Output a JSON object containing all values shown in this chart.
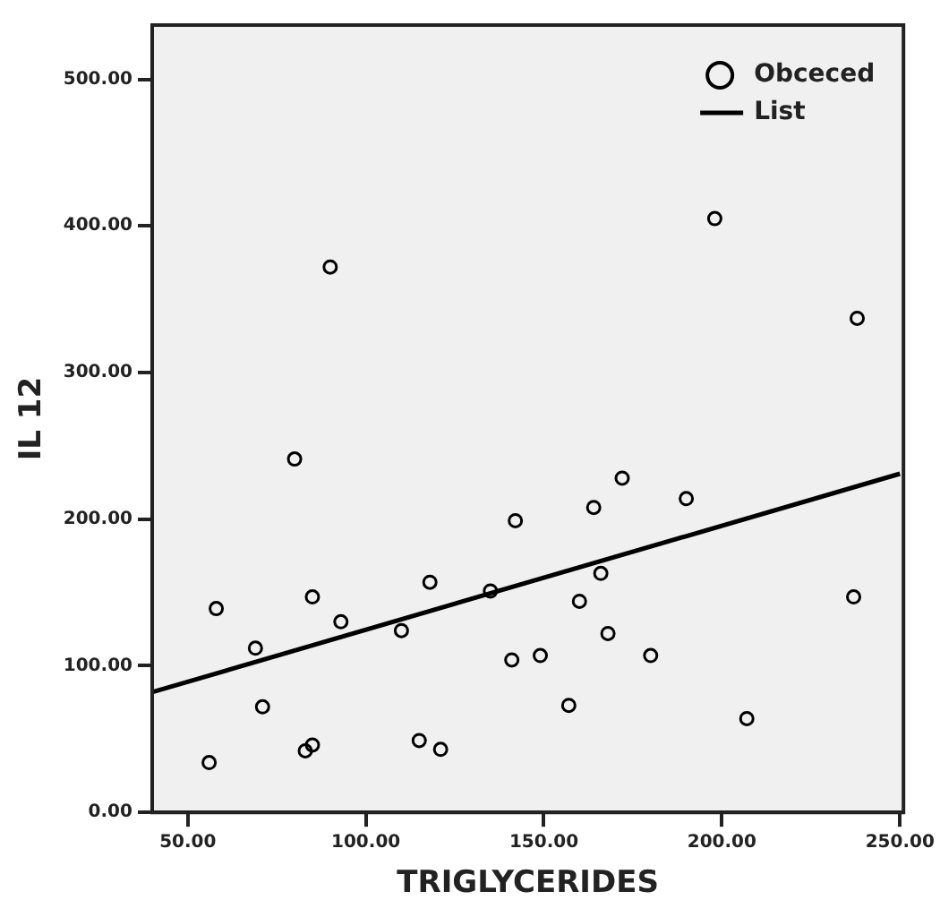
{
  "chart_data": {
    "type": "scatter",
    "xlabel": "TRIGLYCERIDES",
    "ylabel": "IL 12",
    "xlim": [
      40,
      251
    ],
    "xticks": [
      {
        "value": 50,
        "label": "50.00"
      },
      {
        "value": 100,
        "label": "100.00"
      },
      {
        "value": 150,
        "label": "150.00"
      },
      {
        "value": 200,
        "label": "200.00"
      },
      {
        "value": 250,
        "label": "250.00"
      }
    ],
    "ylim": [
      0,
      537
    ],
    "yticks": [
      {
        "value": 0,
        "label": "0.00"
      },
      {
        "value": 100,
        "label": "100.00"
      },
      {
        "value": 200,
        "label": "200.00"
      },
      {
        "value": 300,
        "label": "300.00"
      },
      {
        "value": 400,
        "label": "400.00"
      },
      {
        "value": 500,
        "label": "500.00"
      }
    ],
    "grid": false,
    "legend": "top right",
    "series": [
      {
        "name": "Obceced",
        "type": "scatter",
        "marker": "circle",
        "color": "#000000",
        "x": [
          56,
          58,
          69,
          71,
          80,
          83,
          85,
          85,
          90,
          93,
          110,
          115,
          118,
          121,
          135,
          141,
          142,
          149,
          157,
          160,
          164,
          166,
          168,
          172,
          180,
          190,
          198,
          207,
          237,
          238
        ],
        "values": [
          34,
          139,
          112,
          72,
          241,
          42,
          46,
          147,
          372,
          130,
          124,
          49,
          157,
          43,
          151,
          104,
          199,
          107,
          73,
          144,
          208,
          163,
          122,
          228,
          107,
          214,
          405,
          64,
          147,
          337
        ]
      },
      {
        "name": "List",
        "type": "line",
        "marker": "none",
        "color": "#000000",
        "x": [
          40,
          250
        ],
        "values": [
          82,
          231
        ]
      }
    ]
  }
}
